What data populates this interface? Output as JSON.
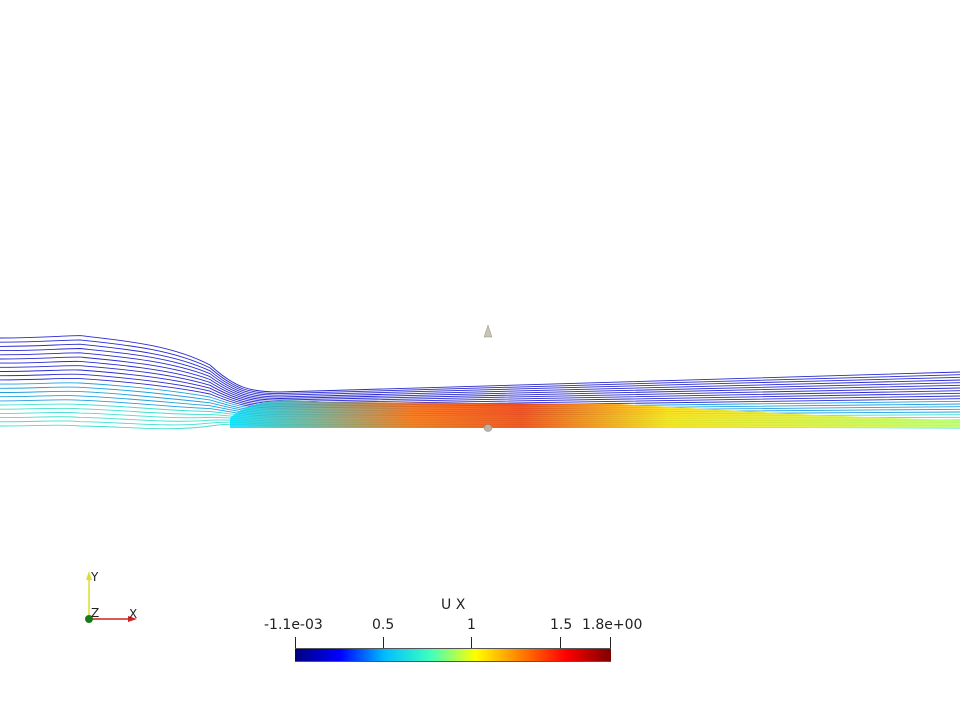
{
  "scene": {
    "field_name": "U X",
    "colorbar": {
      "min_label": "-1.1e-03",
      "max_label": "1.8e+00",
      "tick_labels": [
        "-1.1e-03",
        "0.5",
        "1",
        "1.5",
        "1.8e+00"
      ],
      "tick_values": [
        -0.0011,
        0.5,
        1.0,
        1.5,
        1.8
      ],
      "colors": [
        "#00007f",
        "#0000ff",
        "#00bfff",
        "#3fffbf",
        "#ffff00",
        "#ff7f00",
        "#ff0000",
        "#7f0000"
      ]
    },
    "axes": {
      "x_label": "X",
      "y_label": "Y",
      "z_label": "Z",
      "x_color": "#cc2222",
      "y_color": "#dddd33",
      "z_color": "#1a7a1a"
    }
  }
}
